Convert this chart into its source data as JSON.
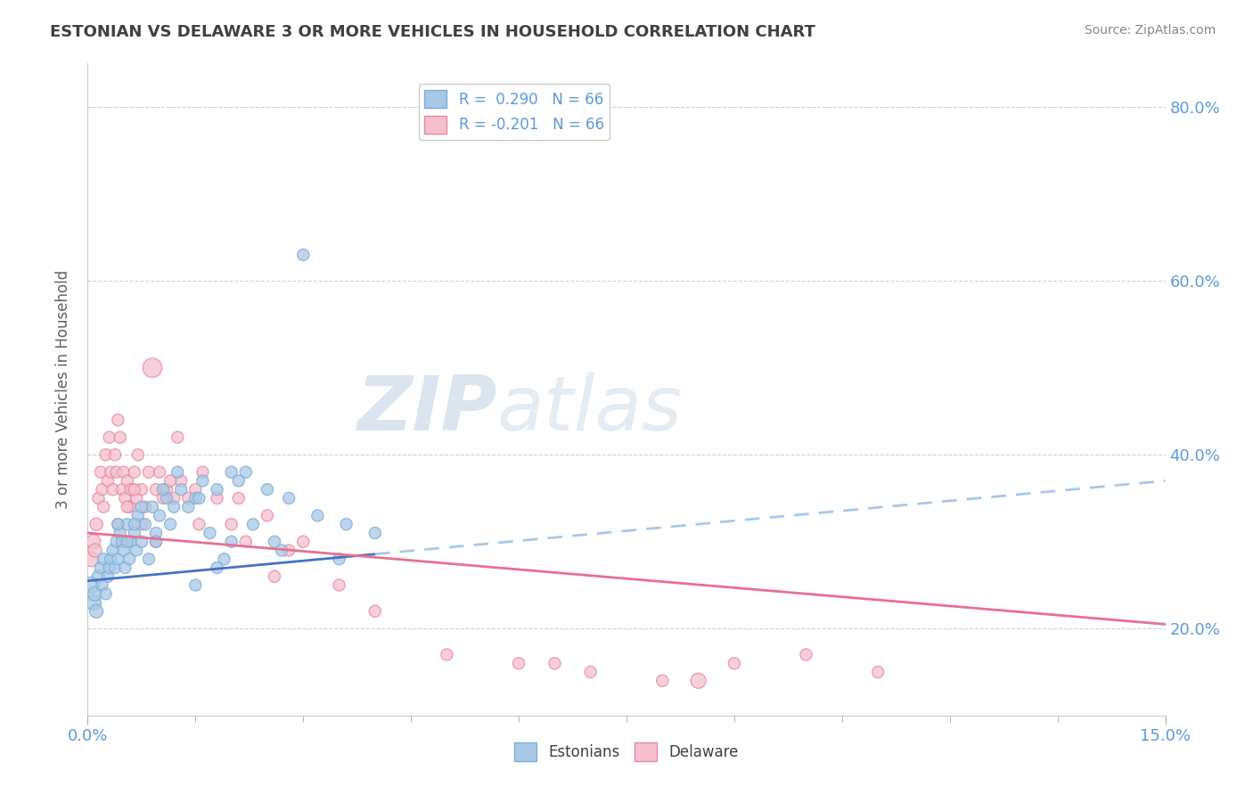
{
  "title": "ESTONIAN VS DELAWARE 3 OR MORE VEHICLES IN HOUSEHOLD CORRELATION CHART",
  "source_text": "Source: ZipAtlas.com",
  "ylabel": "3 or more Vehicles in Household",
  "xlim": [
    0.0,
    15.0
  ],
  "ylim": [
    10.0,
    85.0
  ],
  "ytick_values": [
    20.0,
    40.0,
    60.0,
    80.0
  ],
  "legend_label1": "R =  0.290   N = 66",
  "legend_label2": "R = -0.201   N = 66",
  "bottom_legend_labels": [
    "Estonians",
    "Delaware"
  ],
  "watermark_zip": "ZIP",
  "watermark_atlas": "atlas",
  "blue_fill": "#a8c8e8",
  "blue_edge": "#7aafd4",
  "pink_fill": "#f5c0ce",
  "pink_edge": "#e8899e",
  "blue_line_color": "#4472c4",
  "blue_dash_color": "#a8c8e8",
  "pink_line_color": "#e87090",
  "background_color": "#ffffff",
  "grid_color": "#cccccc",
  "title_color": "#404040",
  "axis_label_color": "#5b9bd5",
  "ylabel_color": "#606060",
  "R_blue": 0.29,
  "R_pink": -0.201,
  "N": 66,
  "blue_x": [
    0.05,
    0.08,
    0.1,
    0.12,
    0.15,
    0.18,
    0.2,
    0.22,
    0.25,
    0.28,
    0.3,
    0.32,
    0.35,
    0.38,
    0.4,
    0.42,
    0.45,
    0.48,
    0.5,
    0.52,
    0.55,
    0.58,
    0.6,
    0.65,
    0.68,
    0.7,
    0.75,
    0.8,
    0.85,
    0.9,
    0.95,
    1.0,
    1.1,
    1.2,
    1.3,
    1.5,
    1.6,
    1.8,
    2.0,
    2.2,
    2.5,
    2.8,
    1.4,
    0.42,
    0.55,
    0.65,
    0.75,
    0.95,
    1.05,
    1.15,
    1.25,
    1.55,
    2.1,
    2.6,
    3.0,
    3.5,
    1.7,
    1.9,
    2.3,
    2.7,
    3.2,
    4.0,
    2.0,
    1.5,
    1.8,
    3.6
  ],
  "blue_y": [
    25,
    23,
    24,
    22,
    26,
    27,
    25,
    28,
    24,
    26,
    27,
    28,
    29,
    27,
    30,
    28,
    31,
    30,
    29,
    27,
    32,
    28,
    30,
    31,
    29,
    33,
    30,
    32,
    28,
    34,
    31,
    33,
    35,
    34,
    36,
    35,
    37,
    36,
    38,
    38,
    36,
    35,
    34,
    32,
    30,
    32,
    34,
    30,
    36,
    32,
    38,
    35,
    37,
    30,
    63,
    28,
    31,
    28,
    32,
    29,
    33,
    31,
    30,
    25,
    27,
    32
  ],
  "blue_sizes": [
    60,
    50,
    45,
    40,
    35,
    30,
    30,
    30,
    30,
    30,
    30,
    30,
    30,
    30,
    30,
    30,
    30,
    30,
    30,
    30,
    30,
    30,
    30,
    30,
    30,
    30,
    30,
    30,
    30,
    30,
    30,
    30,
    30,
    30,
    30,
    30,
    30,
    30,
    30,
    30,
    30,
    30,
    30,
    30,
    30,
    30,
    30,
    30,
    30,
    30,
    30,
    30,
    30,
    30,
    30,
    30,
    30,
    30,
    30,
    30,
    30,
    30,
    30,
    30,
    30,
    30
  ],
  "pink_x": [
    0.05,
    0.08,
    0.1,
    0.12,
    0.15,
    0.18,
    0.2,
    0.22,
    0.25,
    0.28,
    0.3,
    0.32,
    0.35,
    0.38,
    0.4,
    0.42,
    0.45,
    0.48,
    0.5,
    0.52,
    0.55,
    0.58,
    0.6,
    0.65,
    0.68,
    0.7,
    0.75,
    0.8,
    0.85,
    0.9,
    0.95,
    1.0,
    1.1,
    1.2,
    1.3,
    1.5,
    1.6,
    1.8,
    2.0,
    2.2,
    2.5,
    2.8,
    1.4,
    0.42,
    0.55,
    0.65,
    0.75,
    0.95,
    1.05,
    1.15,
    1.25,
    1.55,
    2.1,
    2.6,
    3.0,
    3.5,
    6.0,
    7.0,
    8.0,
    9.0,
    10.0,
    11.0,
    5.0,
    6.5,
    8.5,
    4.0
  ],
  "pink_y": [
    28,
    30,
    29,
    32,
    35,
    38,
    36,
    34,
    40,
    37,
    42,
    38,
    36,
    40,
    38,
    44,
    42,
    36,
    38,
    35,
    37,
    34,
    36,
    38,
    35,
    40,
    36,
    34,
    38,
    50,
    36,
    38,
    36,
    35,
    37,
    36,
    38,
    35,
    32,
    30,
    33,
    29,
    35,
    32,
    34,
    36,
    32,
    30,
    35,
    37,
    42,
    32,
    35,
    26,
    30,
    25,
    16,
    15,
    14,
    16,
    17,
    15,
    17,
    16,
    14,
    22
  ],
  "pink_sizes": [
    50,
    45,
    40,
    35,
    30,
    30,
    30,
    30,
    30,
    30,
    30,
    30,
    30,
    30,
    30,
    30,
    30,
    30,
    30,
    30,
    30,
    30,
    30,
    30,
    30,
    30,
    30,
    30,
    30,
    80,
    30,
    30,
    30,
    30,
    30,
    30,
    30,
    30,
    30,
    30,
    30,
    30,
    30,
    30,
    30,
    30,
    30,
    30,
    30,
    30,
    30,
    30,
    30,
    30,
    30,
    30,
    30,
    30,
    30,
    30,
    30,
    30,
    30,
    30,
    50,
    30
  ],
  "blue_trend_x0": 0.0,
  "blue_trend_y0": 25.5,
  "blue_trend_x1": 15.0,
  "blue_trend_y1": 37.0,
  "pink_trend_x0": 0.0,
  "pink_trend_y0": 31.0,
  "pink_trend_x1": 15.0,
  "pink_trend_y1": 20.5
}
